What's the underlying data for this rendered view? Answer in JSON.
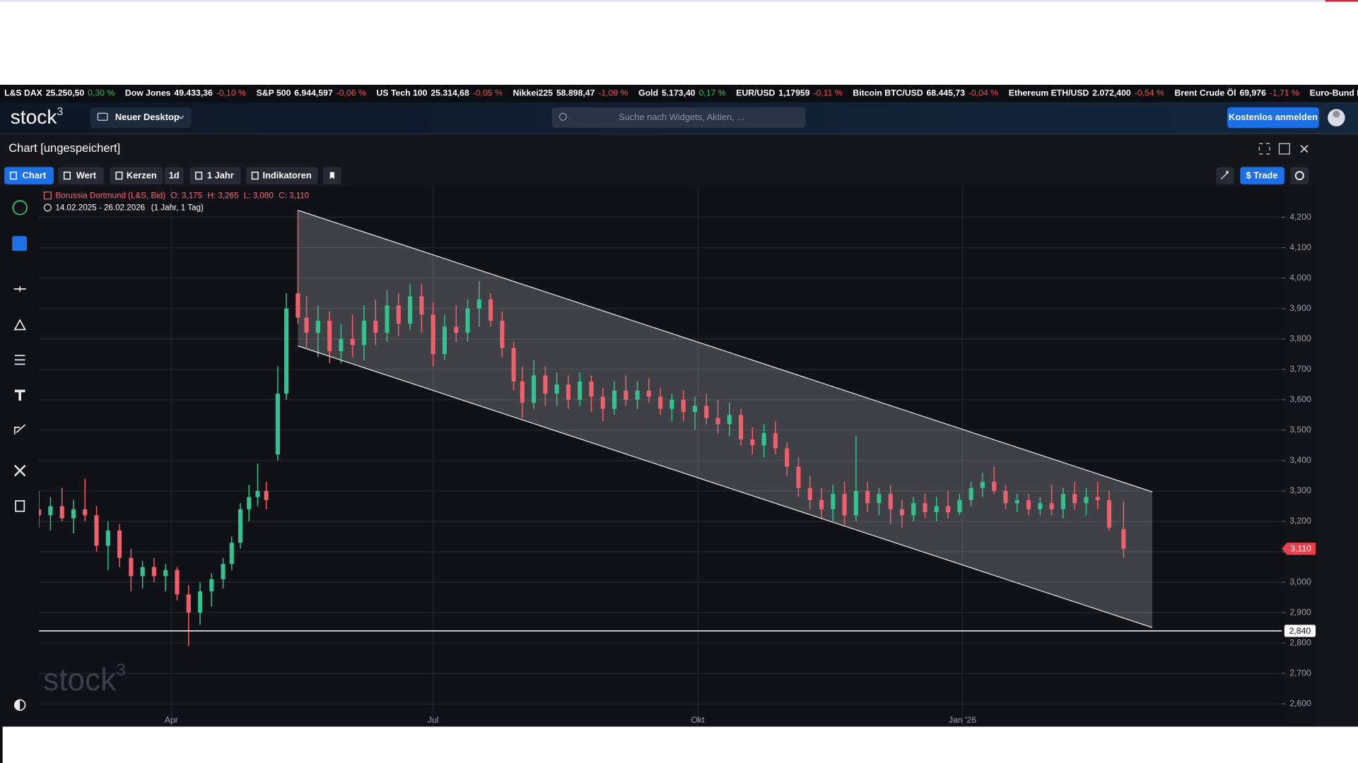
{
  "ticker": [
    {
      "name": "L&S DAX",
      "value": "25.250,50",
      "change": "0,30 %"
    },
    {
      "name": "Dow Jones",
      "value": "49.433,36",
      "change": "-0,10 %"
    },
    {
      "name": "S&P 500",
      "value": "6.944,597",
      "change": "-0,06 %"
    },
    {
      "name": "US Tech 100",
      "value": "25.314,68",
      "change": "-0,05 %"
    },
    {
      "name": "Nikkei225",
      "value": "58.898,47",
      "change": "-1,09 %"
    },
    {
      "name": "Gold",
      "value": "5.173,40",
      "change": "0,17 %"
    },
    {
      "name": "EUR/USD",
      "value": "1,17959",
      "change": "-0,11 %"
    },
    {
      "name": "Bitcoin BTC/USD",
      "value": "68.445,73",
      "change": "-0,04 %"
    },
    {
      "name": "Ethereum ETH/USD",
      "value": "2.072,400",
      "change": "-0,54 %"
    },
    {
      "name": "Brent Crude Öl",
      "value": "69,976",
      "change": "-1,71 %"
    },
    {
      "name": "Euro-Bund F"
    }
  ],
  "header": {
    "logo": "stock",
    "logo_sup": "3",
    "desktop_button": "Neuer Desktop",
    "search_placeholder": "Suche nach Widgets, Aktien, ...",
    "signup_button": "Kostenlos anmelden"
  },
  "window": {
    "title": "Chart [ungespeichert]",
    "toolbar": [
      "Chart",
      "Wert",
      "Kerzen",
      "1d",
      "1 Jahr",
      "Indikatoren"
    ],
    "trade_button": "$ Trade"
  },
  "chart_data": {
    "type": "candlestick",
    "legend": {
      "name": "Borussia Dortmund (L&S, Bid)",
      "open": "O: 3,175",
      "high": "H: 3,265",
      "low": "L: 3,080",
      "close": "C: 3,110",
      "range": "14.02.2025 - 26.02.2026",
      "interval": "(1 Jahr, 1 Tag)"
    },
    "x": [
      0,
      4,
      8,
      12,
      16,
      20,
      24,
      28,
      32,
      36,
      40,
      44,
      48,
      52,
      56,
      60,
      64,
      67,
      70,
      73,
      76,
      79,
      83,
      86,
      90,
      93,
      97,
      101,
      105,
      109,
      113,
      117,
      121,
      125,
      129,
      133,
      137,
      141,
      145,
      149,
      153,
      157,
      161,
      165,
      168,
      172,
      176,
      180,
      184,
      188,
      192,
      196,
      200,
      204,
      208,
      212,
      216,
      220,
      224,
      228,
      232,
      236,
      240,
      244,
      248,
      252,
      256,
      260,
      264,
      268,
      272,
      276,
      280,
      284,
      288,
      292,
      296,
      300,
      304,
      308,
      312,
      316,
      320,
      324,
      328,
      332,
      336,
      340,
      344,
      348,
      352,
      356,
      360,
      364,
      368,
      372,
      377
    ],
    "open": [
      3.24,
      3.22,
      3.25,
      3.21,
      3.24,
      3.22,
      3.12,
      3.17,
      3.08,
      3.02,
      3.05,
      3.02,
      3.04,
      2.96,
      2.9,
      2.97,
      3.01,
      3.06,
      3.13,
      3.24,
      3.28,
      3.3,
      3.42,
      3.62,
      3.95,
      3.87,
      3.82,
      3.86,
      3.76,
      3.8,
      3.78,
      3.86,
      3.82,
      3.91,
      3.85,
      3.94,
      3.88,
      3.75,
      3.84,
      3.82,
      3.9,
      3.93,
      3.86,
      3.77,
      3.66,
      3.59,
      3.68,
      3.62,
      3.65,
      3.6,
      3.66,
      3.61,
      3.57,
      3.63,
      3.6,
      3.63,
      3.61,
      3.57,
      3.6,
      3.56,
      3.58,
      3.54,
      3.52,
      3.55,
      3.47,
      3.45,
      3.49,
      3.44,
      3.38,
      3.31,
      3.27,
      3.24,
      3.29,
      3.22,
      3.3,
      3.26,
      3.29,
      3.24,
      3.22,
      3.26,
      3.23,
      3.25,
      3.23,
      3.27,
      3.31,
      3.33,
      3.3,
      3.26,
      3.27,
      3.24,
      3.26,
      3.24,
      3.29,
      3.26,
      3.28,
      3.27,
      3.175
    ],
    "high": [
      3.3,
      3.28,
      3.31,
      3.27,
      3.34,
      3.25,
      3.2,
      3.19,
      3.11,
      3.07,
      3.08,
      3.06,
      3.05,
      2.99,
      3.0,
      3.03,
      3.08,
      3.15,
      3.26,
      3.32,
      3.39,
      3.33,
      3.71,
      3.95,
      4.22,
      3.94,
      3.91,
      3.89,
      3.85,
      3.88,
      3.91,
      3.93,
      3.96,
      3.95,
      3.98,
      3.98,
      3.92,
      3.88,
      3.91,
      3.93,
      3.99,
      3.95,
      3.89,
      3.79,
      3.71,
      3.73,
      3.71,
      3.69,
      3.68,
      3.69,
      3.68,
      3.64,
      3.66,
      3.68,
      3.66,
      3.67,
      3.64,
      3.62,
      3.63,
      3.61,
      3.62,
      3.6,
      3.59,
      3.57,
      3.51,
      3.52,
      3.53,
      3.46,
      3.41,
      3.35,
      3.31,
      3.32,
      3.33,
      3.48,
      3.33,
      3.31,
      3.32,
      3.27,
      3.28,
      3.29,
      3.28,
      3.3,
      3.29,
      3.33,
      3.36,
      3.38,
      3.32,
      3.29,
      3.29,
      3.28,
      3.32,
      3.31,
      3.33,
      3.31,
      3.33,
      3.3,
      3.265
    ],
    "low": [
      3.18,
      3.17,
      3.2,
      3.16,
      3.2,
      3.1,
      3.04,
      3.05,
      2.97,
      2.98,
      3.0,
      2.97,
      2.94,
      2.79,
      2.86,
      2.92,
      2.98,
      3.04,
      3.11,
      3.2,
      3.25,
      3.24,
      3.4,
      3.6,
      3.85,
      3.77,
      3.74,
      3.72,
      3.72,
      3.74,
      3.73,
      3.78,
      3.79,
      3.81,
      3.83,
      3.82,
      3.71,
      3.73,
      3.79,
      3.79,
      3.84,
      3.84,
      3.74,
      3.63,
      3.54,
      3.57,
      3.58,
      3.58,
      3.57,
      3.58,
      3.56,
      3.53,
      3.55,
      3.58,
      3.57,
      3.59,
      3.55,
      3.53,
      3.53,
      3.5,
      3.52,
      3.49,
      3.48,
      3.45,
      3.42,
      3.41,
      3.42,
      3.35,
      3.28,
      3.24,
      3.21,
      3.2,
      3.19,
      3.2,
      3.23,
      3.22,
      3.19,
      3.18,
      3.2,
      3.21,
      3.2,
      3.21,
      3.22,
      3.25,
      3.28,
      3.29,
      3.24,
      3.23,
      3.22,
      3.22,
      3.22,
      3.21,
      3.24,
      3.22,
      3.24,
      3.17,
      3.08
    ],
    "close": [
      3.22,
      3.25,
      3.21,
      3.24,
      3.22,
      3.12,
      3.17,
      3.08,
      3.02,
      3.05,
      3.02,
      3.04,
      2.96,
      2.9,
      2.97,
      3.01,
      3.06,
      3.13,
      3.24,
      3.28,
      3.3,
      3.27,
      3.62,
      3.9,
      3.87,
      3.82,
      3.86,
      3.76,
      3.8,
      3.78,
      3.86,
      3.82,
      3.91,
      3.85,
      3.94,
      3.88,
      3.75,
      3.84,
      3.82,
      3.9,
      3.93,
      3.86,
      3.77,
      3.66,
      3.59,
      3.68,
      3.62,
      3.65,
      3.6,
      3.66,
      3.61,
      3.57,
      3.63,
      3.6,
      3.63,
      3.61,
      3.57,
      3.6,
      3.56,
      3.58,
      3.54,
      3.52,
      3.55,
      3.47,
      3.45,
      3.49,
      3.44,
      3.38,
      3.31,
      3.27,
      3.24,
      3.29,
      3.22,
      3.3,
      3.26,
      3.29,
      3.24,
      3.22,
      3.26,
      3.23,
      3.25,
      3.23,
      3.27,
      3.31,
      3.33,
      3.3,
      3.26,
      3.27,
      3.24,
      3.26,
      3.24,
      3.29,
      3.26,
      3.28,
      3.27,
      3.18,
      3.11
    ],
    "up_color": "#34c38f",
    "down_color": "#ef5f6c",
    "xlim": [
      0,
      432
    ],
    "ylim": [
      2.525,
      4.3
    ],
    "xticks": [
      {
        "value": 46,
        "label": "Apr"
      },
      {
        "value": 137,
        "label": "Jul"
      },
      {
        "value": 229,
        "label": "Okt"
      },
      {
        "value": 321,
        "label": "Jan '26"
      }
    ],
    "yticks": [
      {
        "value": 2.6,
        "label": "2,600"
      },
      {
        "value": 2.7,
        "label": "2,700"
      },
      {
        "value": 2.8,
        "label": "2,800"
      },
      {
        "value": 2.9,
        "label": "2,900"
      },
      {
        "value": 3.0,
        "label": "3,000"
      },
      {
        "value": 3.1,
        "label": "3,100"
      },
      {
        "value": 3.2,
        "label": "3,200"
      },
      {
        "value": 3.3,
        "label": "3,300"
      },
      {
        "value": 3.4,
        "label": "3,400"
      },
      {
        "value": 3.5,
        "label": "3,500"
      },
      {
        "value": 3.6,
        "label": "3,600"
      },
      {
        "value": 3.7,
        "label": "3,700"
      },
      {
        "value": 3.8,
        "label": "3,800"
      },
      {
        "value": 3.9,
        "label": "3,900"
      },
      {
        "value": 4.0,
        "label": "4,000"
      },
      {
        "value": 4.1,
        "label": "4,100"
      },
      {
        "value": 4.2,
        "label": "4,200"
      }
    ],
    "grid": true,
    "channel": {
      "x": [
        90,
        387
      ],
      "upper": [
        4.223,
        3.297
      ],
      "lower": [
        3.777,
        2.851
      ]
    },
    "hline": {
      "value": 2.84,
      "label": "2,840"
    },
    "last_price": {
      "value": 3.11,
      "label": "3,110"
    },
    "watermark": "stock",
    "watermark_sup": "3"
  }
}
